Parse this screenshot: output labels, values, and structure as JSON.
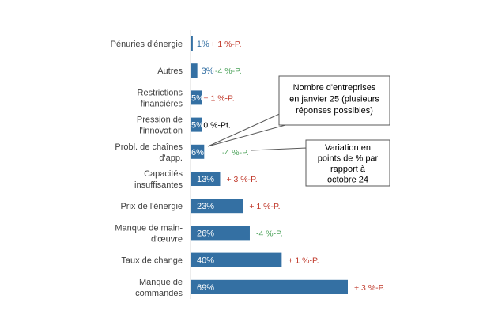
{
  "chart_data": {
    "type": "bar",
    "orientation": "horizontal",
    "categories": [
      [
        "Pénuries d'énergie"
      ],
      [
        "Autres"
      ],
      [
        "Restrictions",
        "financières"
      ],
      [
        "Pression de",
        "l'innovation"
      ],
      [
        "Probl. de chaînes",
        "d'app."
      ],
      [
        "Capacités",
        "insuffisantes"
      ],
      [
        "Prix de l'énergie"
      ],
      [
        "Manque de main-",
        "d'œuvre"
      ],
      [
        "Taux de change"
      ],
      [
        "Manque de",
        "commandes"
      ]
    ],
    "values": [
      1,
      3,
      5,
      5,
      6,
      13,
      23,
      26,
      40,
      69
    ],
    "value_labels": [
      "1%",
      "3%",
      "5%",
      "5%",
      "6%",
      "13%",
      "23%",
      "26%",
      "40%",
      "69%"
    ],
    "change_labels": [
      "+ 1 %-P.",
      "-4 %-P.",
      "+ 1 %-P.",
      "0 %-Pt.",
      "-4 %-P.",
      "+ 3 %-P.",
      "+ 1 %-P.",
      "-4 %-P.",
      "+ 1 %-P.",
      "+ 3 %-P."
    ],
    "change_values": [
      1,
      -4,
      1,
      0,
      -4,
      3,
      1,
      -4,
      1,
      3
    ],
    "xlim": [
      0,
      69
    ],
    "grid": false,
    "annotations": [
      [
        "Nombre d'entreprises",
        "en janvier 25 (plusieurs",
        "réponses possibles)"
      ],
      [
        "Variation en",
        "points de % par",
        "rapport à",
        "octobre 24"
      ]
    ],
    "colors": {
      "bar": "#3470A3",
      "positive": "#C0392B",
      "negative": "#4CA25A",
      "neutral": "#000000",
      "outside_label": "#3470A3"
    }
  }
}
